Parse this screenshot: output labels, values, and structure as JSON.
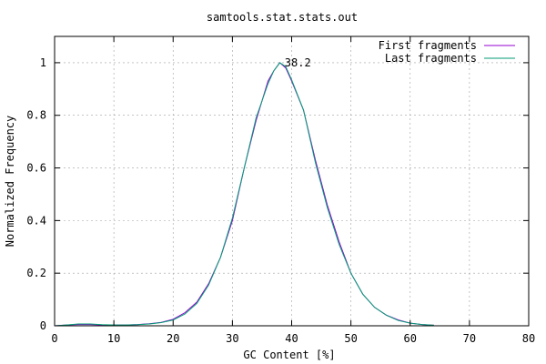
{
  "chart_data": {
    "type": "line",
    "title": "samtools.stat.stats.out",
    "xlabel": "GC Content [%]",
    "ylabel": "Normalized Frequency",
    "xlim": [
      0,
      80
    ],
    "ylim": [
      0,
      1.1
    ],
    "xticks": [
      "0",
      "10",
      "20",
      "30",
      "40",
      "50",
      "60",
      "70",
      "80"
    ],
    "yticks": [
      "0",
      "0.2",
      "0.4",
      "0.6",
      "0.8",
      "1"
    ],
    "grid": true,
    "legend_position": "top-right",
    "peak_label": {
      "text": "38.2",
      "x": 38.2,
      "y": 1.0
    },
    "series": [
      {
        "name": "First fragments",
        "color": "#9400d3",
        "x": [
          0,
          2,
          4,
          6,
          8,
          10,
          12,
          14,
          16,
          18,
          20,
          22,
          24,
          26,
          28,
          30,
          32,
          34,
          36,
          37,
          38,
          39,
          40,
          42,
          44,
          46,
          48,
          50,
          52,
          54,
          56,
          58,
          60,
          62,
          64
        ],
        "y": [
          0.0,
          0.003,
          0.005,
          0.005,
          0.003,
          0.003,
          0.003,
          0.005,
          0.008,
          0.013,
          0.025,
          0.05,
          0.09,
          0.16,
          0.26,
          0.4,
          0.6,
          0.78,
          0.93,
          0.97,
          1.0,
          0.98,
          0.93,
          0.82,
          0.63,
          0.46,
          0.32,
          0.2,
          0.12,
          0.07,
          0.04,
          0.022,
          0.01,
          0.005,
          0.002
        ]
      },
      {
        "name": "Last fragments",
        "color": "#009e73",
        "x": [
          0,
          2,
          4,
          6,
          8,
          10,
          12,
          14,
          16,
          18,
          20,
          22,
          24,
          26,
          28,
          30,
          32,
          34,
          36,
          37,
          38,
          39,
          40,
          42,
          44,
          46,
          48,
          50,
          52,
          54,
          56,
          58,
          60,
          62,
          64
        ],
        "y": [
          0.0,
          0.003,
          0.007,
          0.007,
          0.004,
          0.003,
          0.003,
          0.004,
          0.007,
          0.012,
          0.022,
          0.045,
          0.085,
          0.155,
          0.26,
          0.41,
          0.6,
          0.79,
          0.92,
          0.97,
          1.0,
          0.985,
          0.935,
          0.82,
          0.62,
          0.45,
          0.31,
          0.2,
          0.12,
          0.07,
          0.04,
          0.02,
          0.01,
          0.005,
          0.002
        ]
      }
    ]
  }
}
